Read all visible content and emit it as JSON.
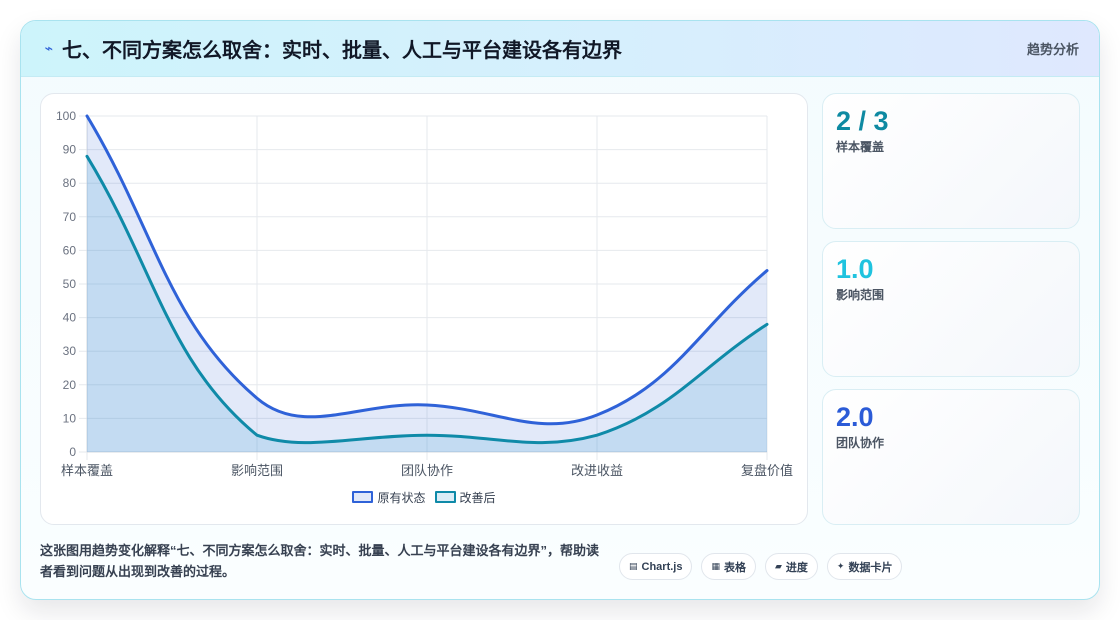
{
  "header": {
    "icon": "⌁",
    "title": "七、不同方案怎么取舍：实时、批量、人工与平台建设各有边界",
    "badge": "趋势分析"
  },
  "chart_data": {
    "type": "line",
    "categories": [
      "样本覆盖",
      "影响范围",
      "团队协作",
      "改进收益",
      "复盘价值"
    ],
    "series": [
      {
        "name": "原有状态",
        "values": [
          100,
          16,
          14,
          11,
          54
        ],
        "color": "#2f62d8",
        "fill": "#2f62d8"
      },
      {
        "name": "改善后",
        "values": [
          88,
          5,
          5,
          5,
          38
        ],
        "color": "#0f8aa8",
        "fill": "#4ba3d9"
      }
    ],
    "ylim": [
      0,
      100
    ],
    "yticks": [
      0,
      10,
      20,
      30,
      40,
      50,
      60,
      70,
      80,
      90,
      100
    ],
    "grid": true,
    "legend": "bottom",
    "filled": true,
    "smooth": true
  },
  "stats": [
    {
      "value": "2 / 3",
      "label": "样本覆盖",
      "color": "#0e8aa2"
    },
    {
      "value": "1.0",
      "label": "影响范围",
      "color": "#1fc3df"
    },
    {
      "value": "2.0",
      "label": "团队协作",
      "color": "#2b5bd7"
    }
  ],
  "description": "这张图用趋势变化解释“七、不同方案怎么取舍：实时、批量、人工与平台建设各有边界”，帮助读者看到问题从出现到改善的过程。",
  "tags": [
    {
      "icon": "▤",
      "label": "Chart.js"
    },
    {
      "icon": "▦",
      "label": "表格"
    },
    {
      "icon": "▰",
      "label": "进度"
    },
    {
      "icon": "✦",
      "label": "数据卡片"
    }
  ]
}
